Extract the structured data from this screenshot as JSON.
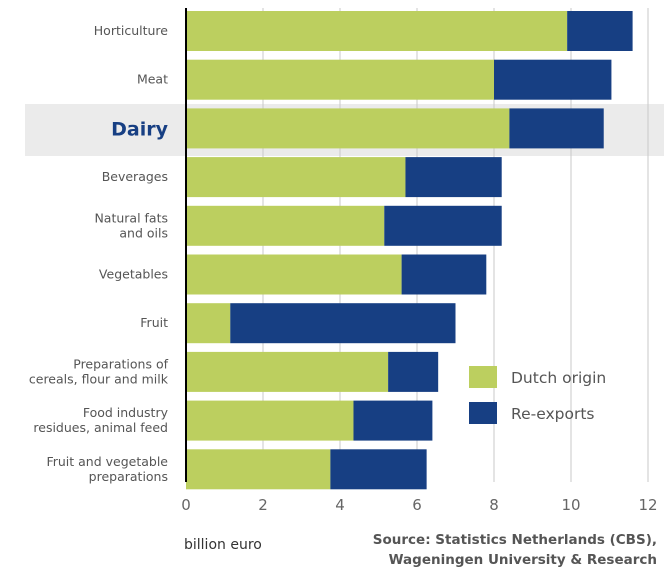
{
  "chart_data": {
    "type": "bar",
    "orientation": "horizontal",
    "stacked": true,
    "categories": [
      [
        "Horticulture"
      ],
      [
        "Meat"
      ],
      [
        "Dairy"
      ],
      [
        "Beverages"
      ],
      [
        "Natural fats",
        "and oils"
      ],
      [
        "Vegetables"
      ],
      [
        "Fruit"
      ],
      [
        "Preparations of",
        "cereals, flour and milk"
      ],
      [
        "Food industry",
        "residues, animal feed"
      ],
      [
        "Fruit and vegetable",
        "preparations"
      ]
    ],
    "highlighted_category": "Dairy",
    "series": [
      {
        "name": "Dutch origin",
        "color": "#bccf5f",
        "values": [
          9.9,
          8.0,
          8.4,
          5.7,
          5.15,
          5.6,
          1.15,
          5.25,
          4.35,
          3.75
        ]
      },
      {
        "name": "Re-exports",
        "color": "#173f83",
        "values": [
          1.7,
          3.05,
          2.45,
          2.5,
          3.05,
          2.2,
          5.85,
          1.3,
          2.05,
          2.5
        ]
      }
    ],
    "xlim": [
      0,
      12
    ],
    "xticks": [
      0,
      2,
      4,
      6,
      8,
      10,
      12
    ],
    "xlabel": "billion euro",
    "grid": true,
    "legend_position": "bottom-right",
    "source": [
      "Source: Statistics Netherlands (CBS),",
      "Wageningen University & Research"
    ]
  }
}
